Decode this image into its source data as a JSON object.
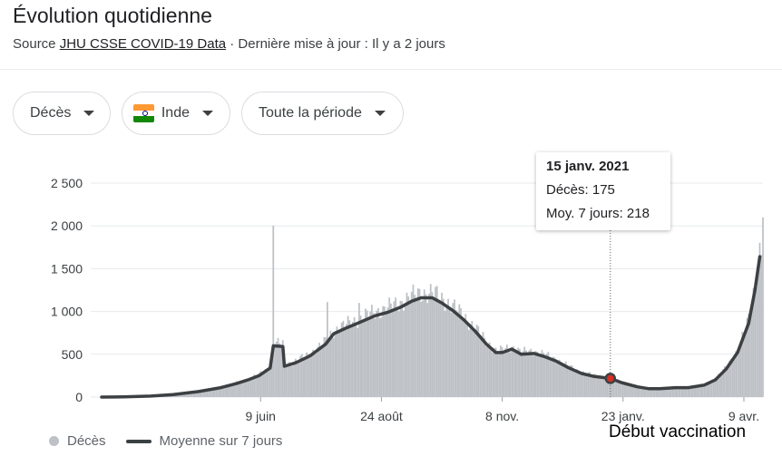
{
  "header": {
    "title": "Évolution quotidienne",
    "source_prefix": "Source",
    "source_link": "JHU CSSE COVID-19 Data",
    "source_suffix": " · Dernière mise à jour : Il y a 2 jours"
  },
  "filters": {
    "metric": "Décès",
    "country": "Inde",
    "period": "Toute la période"
  },
  "tooltip": {
    "date": "15 janv. 2021",
    "deaths_label": "Décès:",
    "deaths_value": "175",
    "avg_label": "Moy. 7 jours:",
    "avg_value": "218"
  },
  "annotation": "Début vaccination",
  "legend": {
    "bars": "Décès",
    "line": "Moyenne sur 7 jours"
  },
  "colors": {
    "bars": "#bdc1c6",
    "line": "#3c4043",
    "marker": "#d93025",
    "grid": "#e8eaed"
  },
  "chart_data": {
    "type": "bar",
    "title": "",
    "xlabel": "",
    "ylabel": "",
    "ylim": [
      0,
      2500
    ],
    "yticks": [
      0,
      500,
      1000,
      1500,
      2000,
      2500
    ],
    "ytick_labels": [
      "0",
      "500",
      "1 000",
      "1 500",
      "2 000",
      "2 500"
    ],
    "xticks": [
      {
        "date": "2020-06-09",
        "label": "9 juin"
      },
      {
        "date": "2020-08-24",
        "label": "24 août"
      },
      {
        "date": "2020-11-08",
        "label": "8 nov."
      },
      {
        "date": "2021-01-23",
        "label": "23 janv."
      },
      {
        "date": "2021-04-09",
        "label": "9 avr."
      }
    ],
    "x_range": [
      "2020-03-01",
      "2021-04-21"
    ],
    "highlight": {
      "date": "2021-01-15",
      "deaths": 175,
      "avg7": 218
    },
    "spikes": [
      {
        "date": "2020-06-17",
        "deaths": 2003
      },
      {
        "date": "2020-08-10",
        "deaths": 1100
      },
      {
        "date": "2020-07-21",
        "deaths": 1110
      }
    ],
    "series": [
      {
        "name": "Moyenne sur 7 jours",
        "points": [
          [
            "2020-03-01",
            0
          ],
          [
            "2020-03-15",
            2
          ],
          [
            "2020-04-01",
            12
          ],
          [
            "2020-04-15",
            30
          ],
          [
            "2020-05-01",
            65
          ],
          [
            "2020-05-15",
            110
          ],
          [
            "2020-05-25",
            160
          ],
          [
            "2020-06-01",
            200
          ],
          [
            "2020-06-08",
            250
          ],
          [
            "2020-06-15",
            340
          ],
          [
            "2020-06-17",
            600
          ],
          [
            "2020-06-23",
            590
          ],
          [
            "2020-06-24",
            360
          ],
          [
            "2020-07-01",
            400
          ],
          [
            "2020-07-10",
            480
          ],
          [
            "2020-07-20",
            620
          ],
          [
            "2020-07-25",
            740
          ],
          [
            "2020-08-01",
            800
          ],
          [
            "2020-08-10",
            870
          ],
          [
            "2020-08-20",
            950
          ],
          [
            "2020-08-28",
            990
          ],
          [
            "2020-09-05",
            1050
          ],
          [
            "2020-09-12",
            1120
          ],
          [
            "2020-09-18",
            1160
          ],
          [
            "2020-09-25",
            1160
          ],
          [
            "2020-10-01",
            1100
          ],
          [
            "2020-10-08",
            1010
          ],
          [
            "2020-10-15",
            900
          ],
          [
            "2020-10-22",
            770
          ],
          [
            "2020-10-29",
            620
          ],
          [
            "2020-11-04",
            520
          ],
          [
            "2020-11-08",
            520
          ],
          [
            "2020-11-14",
            560
          ],
          [
            "2020-11-20",
            500
          ],
          [
            "2020-11-28",
            510
          ],
          [
            "2020-12-05",
            470
          ],
          [
            "2020-12-12",
            420
          ],
          [
            "2020-12-20",
            340
          ],
          [
            "2020-12-28",
            275
          ],
          [
            "2021-01-05",
            240
          ],
          [
            "2021-01-15",
            218
          ],
          [
            "2021-01-22",
            170
          ],
          [
            "2021-02-01",
            120
          ],
          [
            "2021-02-08",
            98
          ],
          [
            "2021-02-15",
            98
          ],
          [
            "2021-02-25",
            110
          ],
          [
            "2021-03-05",
            110
          ],
          [
            "2021-03-15",
            140
          ],
          [
            "2021-03-22",
            200
          ],
          [
            "2021-03-29",
            330
          ],
          [
            "2021-04-05",
            520
          ],
          [
            "2021-04-12",
            860
          ],
          [
            "2021-04-16",
            1250
          ],
          [
            "2021-04-19",
            1640
          ]
        ]
      }
    ]
  }
}
